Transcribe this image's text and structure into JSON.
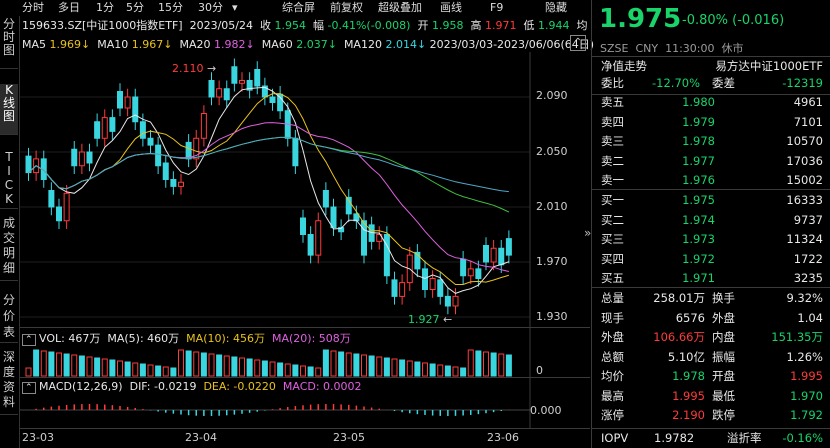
{
  "top_tabs": [
    "分时",
    "多日",
    "1分",
    "5分",
    "15分",
    "30分",
    "▾",
    "综合屏",
    "前复权",
    "超级叠加",
    "画线",
    "F9",
    "隐藏"
  ],
  "left_tabs": [
    "分时图",
    "K线图",
    "TICK",
    "成交明细",
    "分价表",
    "深度资料"
  ],
  "header": {
    "code": "159633.SZ[中证1000指数ETF]",
    "date": "2023/05/24",
    "close_label": "收",
    "close": "1.954",
    "chg_label": "幅",
    "chg": "-0.41%(-0.008)",
    "open_label": "开",
    "open": "1.958",
    "high_label": "高",
    "high": "1.971",
    "low_label": "低",
    "low": "1.944",
    "extra": "均"
  },
  "ma_line": {
    "ma5_label": "MA5",
    "ma5": "1.969↓",
    "ma10_label": "MA10",
    "ma10": "1.967↓",
    "ma20_label": "MA20",
    "ma20": "1.982↓",
    "ma60_label": "MA60",
    "ma60": "2.037↓",
    "ma120_label": "MA120",
    "ma120": "2.014↓",
    "range": "2023/03/03-2023/06/06(64日)"
  },
  "price_axis": [
    "2.090",
    "2.050",
    "2.010",
    "1.970",
    "1.930"
  ],
  "marks": {
    "high_mark": "2.110",
    "low_mark": "1.927"
  },
  "vol_line": {
    "label": "VOL: 467万",
    "ma5": "MA(5): 460万",
    "ma10": "MA(10): 456万",
    "ma20": "MA(20): 508万",
    "axis_zero": "0"
  },
  "macd_line": {
    "label": "MACD(12,26,9)",
    "dif": "DIF: -0.0219",
    "dea": "DEA: -0.0220",
    "macd": "MACD: 0.0002",
    "axis": "0.000"
  },
  "date_axis": [
    "23-03",
    "23-04",
    "23-05",
    "23-06"
  ],
  "quote": {
    "price": "1.975",
    "change": "-0.80% (-0.016)",
    "market": "SZSE",
    "currency": "CNY",
    "time": "11:30:00",
    "status": "休市",
    "nav_label": "净值走势",
    "name": "易方达中证1000ETF",
    "weibi_label": "委比",
    "weibi": "-12.70%",
    "weicha_label": "委差",
    "weicha": "-12319",
    "asks": [
      {
        "label": "卖五",
        "price": "1.980",
        "vol": "4961"
      },
      {
        "label": "卖四",
        "price": "1.979",
        "vol": "7101"
      },
      {
        "label": "卖三",
        "price": "1.978",
        "vol": "10570"
      },
      {
        "label": "卖二",
        "price": "1.977",
        "vol": "17036"
      },
      {
        "label": "卖一",
        "price": "1.976",
        "vol": "15002"
      }
    ],
    "bids": [
      {
        "label": "买一",
        "price": "1.975",
        "vol": "16333"
      },
      {
        "label": "买二",
        "price": "1.974",
        "vol": "9737"
      },
      {
        "label": "买三",
        "price": "1.973",
        "vol": "11324"
      },
      {
        "label": "买四",
        "price": "1.972",
        "vol": "1722"
      },
      {
        "label": "买五",
        "price": "1.971",
        "vol": "3235"
      }
    ],
    "stats": [
      {
        "l1": "总量",
        "v1": "258.01万",
        "l2": "换手",
        "v2": "9.32%",
        "c1": "w",
        "c2": "w"
      },
      {
        "l1": "现手",
        "v1": "6576",
        "l2": "外盘",
        "v2": "1.04",
        "c1": "w",
        "c2": "w"
      },
      {
        "l1": "外盘",
        "v1": "106.66万",
        "l2": "内盘",
        "v2": "151.35万",
        "c1": "red",
        "c2": "grn"
      },
      {
        "l1": "总额",
        "v1": "5.10亿",
        "l2": "振幅",
        "v2": "1.26%",
        "c1": "w",
        "c2": "w"
      },
      {
        "l1": "均价",
        "v1": "1.978",
        "l2": "开盘",
        "v2": "1.995",
        "c1": "grn",
        "c2": "red"
      },
      {
        "l1": "最高",
        "v1": "1.995",
        "l2": "最低",
        "v2": "1.970",
        "c1": "red",
        "c2": "grn"
      },
      {
        "l1": "涨停",
        "v1": "2.190",
        "l2": "跌停",
        "v2": "1.792",
        "c1": "red",
        "c2": "grn"
      }
    ],
    "iopv_label": "IOPV",
    "iopv": "1.9782",
    "premium_label": "溢折率",
    "premium": "-0.16%"
  },
  "colors": {
    "up": "#ff3b3b",
    "down": "#3ad6e0",
    "ma5": "#e8e8e8",
    "ma10": "#e8c21d",
    "ma20": "#e060e0",
    "ma60": "#3fbf3f",
    "ma120": "#4fa8c8"
  }
}
